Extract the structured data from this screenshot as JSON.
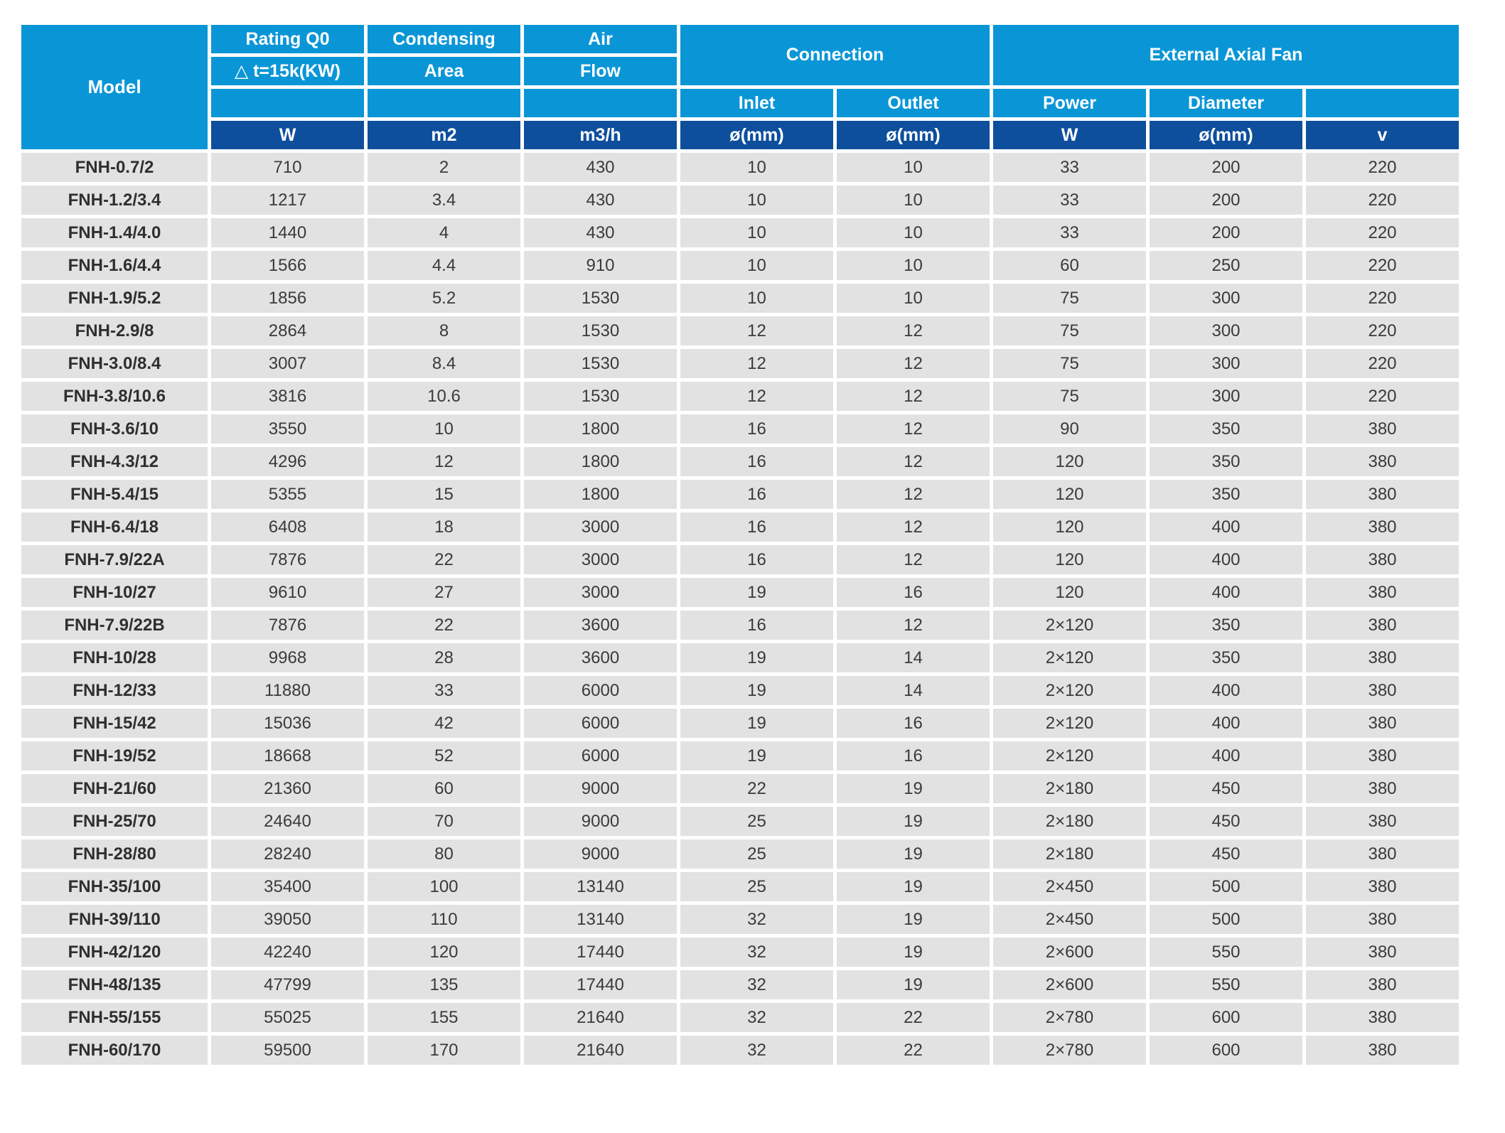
{
  "table": {
    "header": {
      "model": "Model",
      "rating_line1": "Rating Q0",
      "rating_line2": "△ t=15k(KW)",
      "condensing_line1": "Condensing",
      "condensing_line2": "Area",
      "air_line1": "Air",
      "air_line2": "Flow",
      "connection": "Connection",
      "external_fan": "External Axial Fan",
      "inlet": "Inlet",
      "outlet": "Outlet",
      "power": "Power",
      "diameter": "Diameter",
      "units": {
        "rating": "W",
        "condensing": "m2",
        "air": "m3/h",
        "inlet": "ø(mm)",
        "outlet": "ø(mm)",
        "power": "W",
        "diameter": "ø(mm)",
        "voltage": "v"
      }
    },
    "rows": [
      [
        "FNH-0.7/2",
        "710",
        "2",
        "430",
        "10",
        "10",
        "33",
        "200",
        "220"
      ],
      [
        "FNH-1.2/3.4",
        "1217",
        "3.4",
        "430",
        "10",
        "10",
        "33",
        "200",
        "220"
      ],
      [
        "FNH-1.4/4.0",
        "1440",
        "4",
        "430",
        "10",
        "10",
        "33",
        "200",
        "220"
      ],
      [
        "FNH-1.6/4.4",
        "1566",
        "4.4",
        "910",
        "10",
        "10",
        "60",
        "250",
        "220"
      ],
      [
        "FNH-1.9/5.2",
        "1856",
        "5.2",
        "1530",
        "10",
        "10",
        "75",
        "300",
        "220"
      ],
      [
        "FNH-2.9/8",
        "2864",
        "8",
        "1530",
        "12",
        "12",
        "75",
        "300",
        "220"
      ],
      [
        "FNH-3.0/8.4",
        "3007",
        "8.4",
        "1530",
        "12",
        "12",
        "75",
        "300",
        "220"
      ],
      [
        "FNH-3.8/10.6",
        "3816",
        "10.6",
        "1530",
        "12",
        "12",
        "75",
        "300",
        "220"
      ],
      [
        "FNH-3.6/10",
        "3550",
        "10",
        "1800",
        "16",
        "12",
        "90",
        "350",
        "380"
      ],
      [
        "FNH-4.3/12",
        "4296",
        "12",
        "1800",
        "16",
        "12",
        "120",
        "350",
        "380"
      ],
      [
        "FNH-5.4/15",
        "5355",
        "15",
        "1800",
        "16",
        "12",
        "120",
        "350",
        "380"
      ],
      [
        "FNH-6.4/18",
        "6408",
        "18",
        "3000",
        "16",
        "12",
        "120",
        "400",
        "380"
      ],
      [
        "FNH-7.9/22A",
        "7876",
        "22",
        "3000",
        "16",
        "12",
        "120",
        "400",
        "380"
      ],
      [
        "FNH-10/27",
        "9610",
        "27",
        "3000",
        "19",
        "16",
        "120",
        "400",
        "380"
      ],
      [
        "FNH-7.9/22B",
        "7876",
        "22",
        "3600",
        "16",
        "12",
        "2×120",
        "350",
        "380"
      ],
      [
        "FNH-10/28",
        "9968",
        "28",
        "3600",
        "19",
        "14",
        "2×120",
        "350",
        "380"
      ],
      [
        "FNH-12/33",
        "11880",
        "33",
        "6000",
        "19",
        "14",
        "2×120",
        "400",
        "380"
      ],
      [
        "FNH-15/42",
        "15036",
        "42",
        "6000",
        "19",
        "16",
        "2×120",
        "400",
        "380"
      ],
      [
        "FNH-19/52",
        "18668",
        "52",
        "6000",
        "19",
        "16",
        "2×120",
        "400",
        "380"
      ],
      [
        "FNH-21/60",
        "21360",
        "60",
        "9000",
        "22",
        "19",
        "2×180",
        "450",
        "380"
      ],
      [
        "FNH-25/70",
        "24640",
        "70",
        "9000",
        "25",
        "19",
        "2×180",
        "450",
        "380"
      ],
      [
        "FNH-28/80",
        "28240",
        "80",
        "9000",
        "25",
        "19",
        "2×180",
        "450",
        "380"
      ],
      [
        "FNH-35/100",
        "35400",
        "100",
        "13140",
        "25",
        "19",
        "2×450",
        "500",
        "380"
      ],
      [
        "FNH-39/110",
        "39050",
        "110",
        "13140",
        "32",
        "19",
        "2×450",
        "500",
        "380"
      ],
      [
        "FNH-42/120",
        "42240",
        "120",
        "17440",
        "32",
        "19",
        "2×600",
        "550",
        "380"
      ],
      [
        "FNH-48/135",
        "47799",
        "135",
        "17440",
        "32",
        "19",
        "2×600",
        "550",
        "380"
      ],
      [
        "FNH-55/155",
        "55025",
        "155",
        "21640",
        "32",
        "22",
        "2×780",
        "600",
        "380"
      ],
      [
        "FNH-60/170",
        "59500",
        "170",
        "21640",
        "32",
        "22",
        "2×780",
        "600",
        "380"
      ]
    ]
  },
  "colors": {
    "header_cyan": "#0a96d6",
    "header_dark_blue": "#0d4f9d",
    "row_gray": "#e2e2e2",
    "separator_white": "#ffffff",
    "text_dark": "#3a3a3a"
  }
}
